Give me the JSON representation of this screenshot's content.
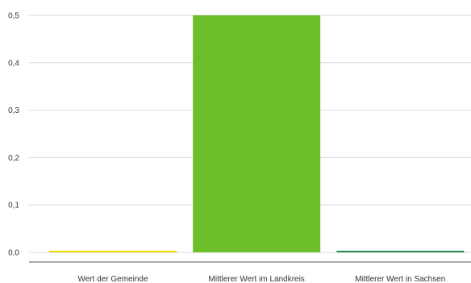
{
  "chart_data": {
    "type": "bar",
    "categories": [
      "Wert der Gemeinde",
      "Mittlerer Wert im Landkreis",
      "Mittlerer Wert in Sachsen"
    ],
    "values": [
      0,
      0.5,
      0
    ],
    "colors": [
      "#f2d600",
      "#6cbf2a",
      "#1f8a4c"
    ],
    "y_ticks": [
      0,
      0.1,
      0.2,
      0.3,
      0.4,
      0.5
    ],
    "y_tick_labels": [
      "0,0",
      "0,1",
      "0,2",
      "0,3",
      "0,4",
      "0,5"
    ],
    "ylim": [
      0,
      0.5
    ],
    "grid": true,
    "legend": "none",
    "title": "",
    "xlabel": "",
    "ylabel": ""
  }
}
